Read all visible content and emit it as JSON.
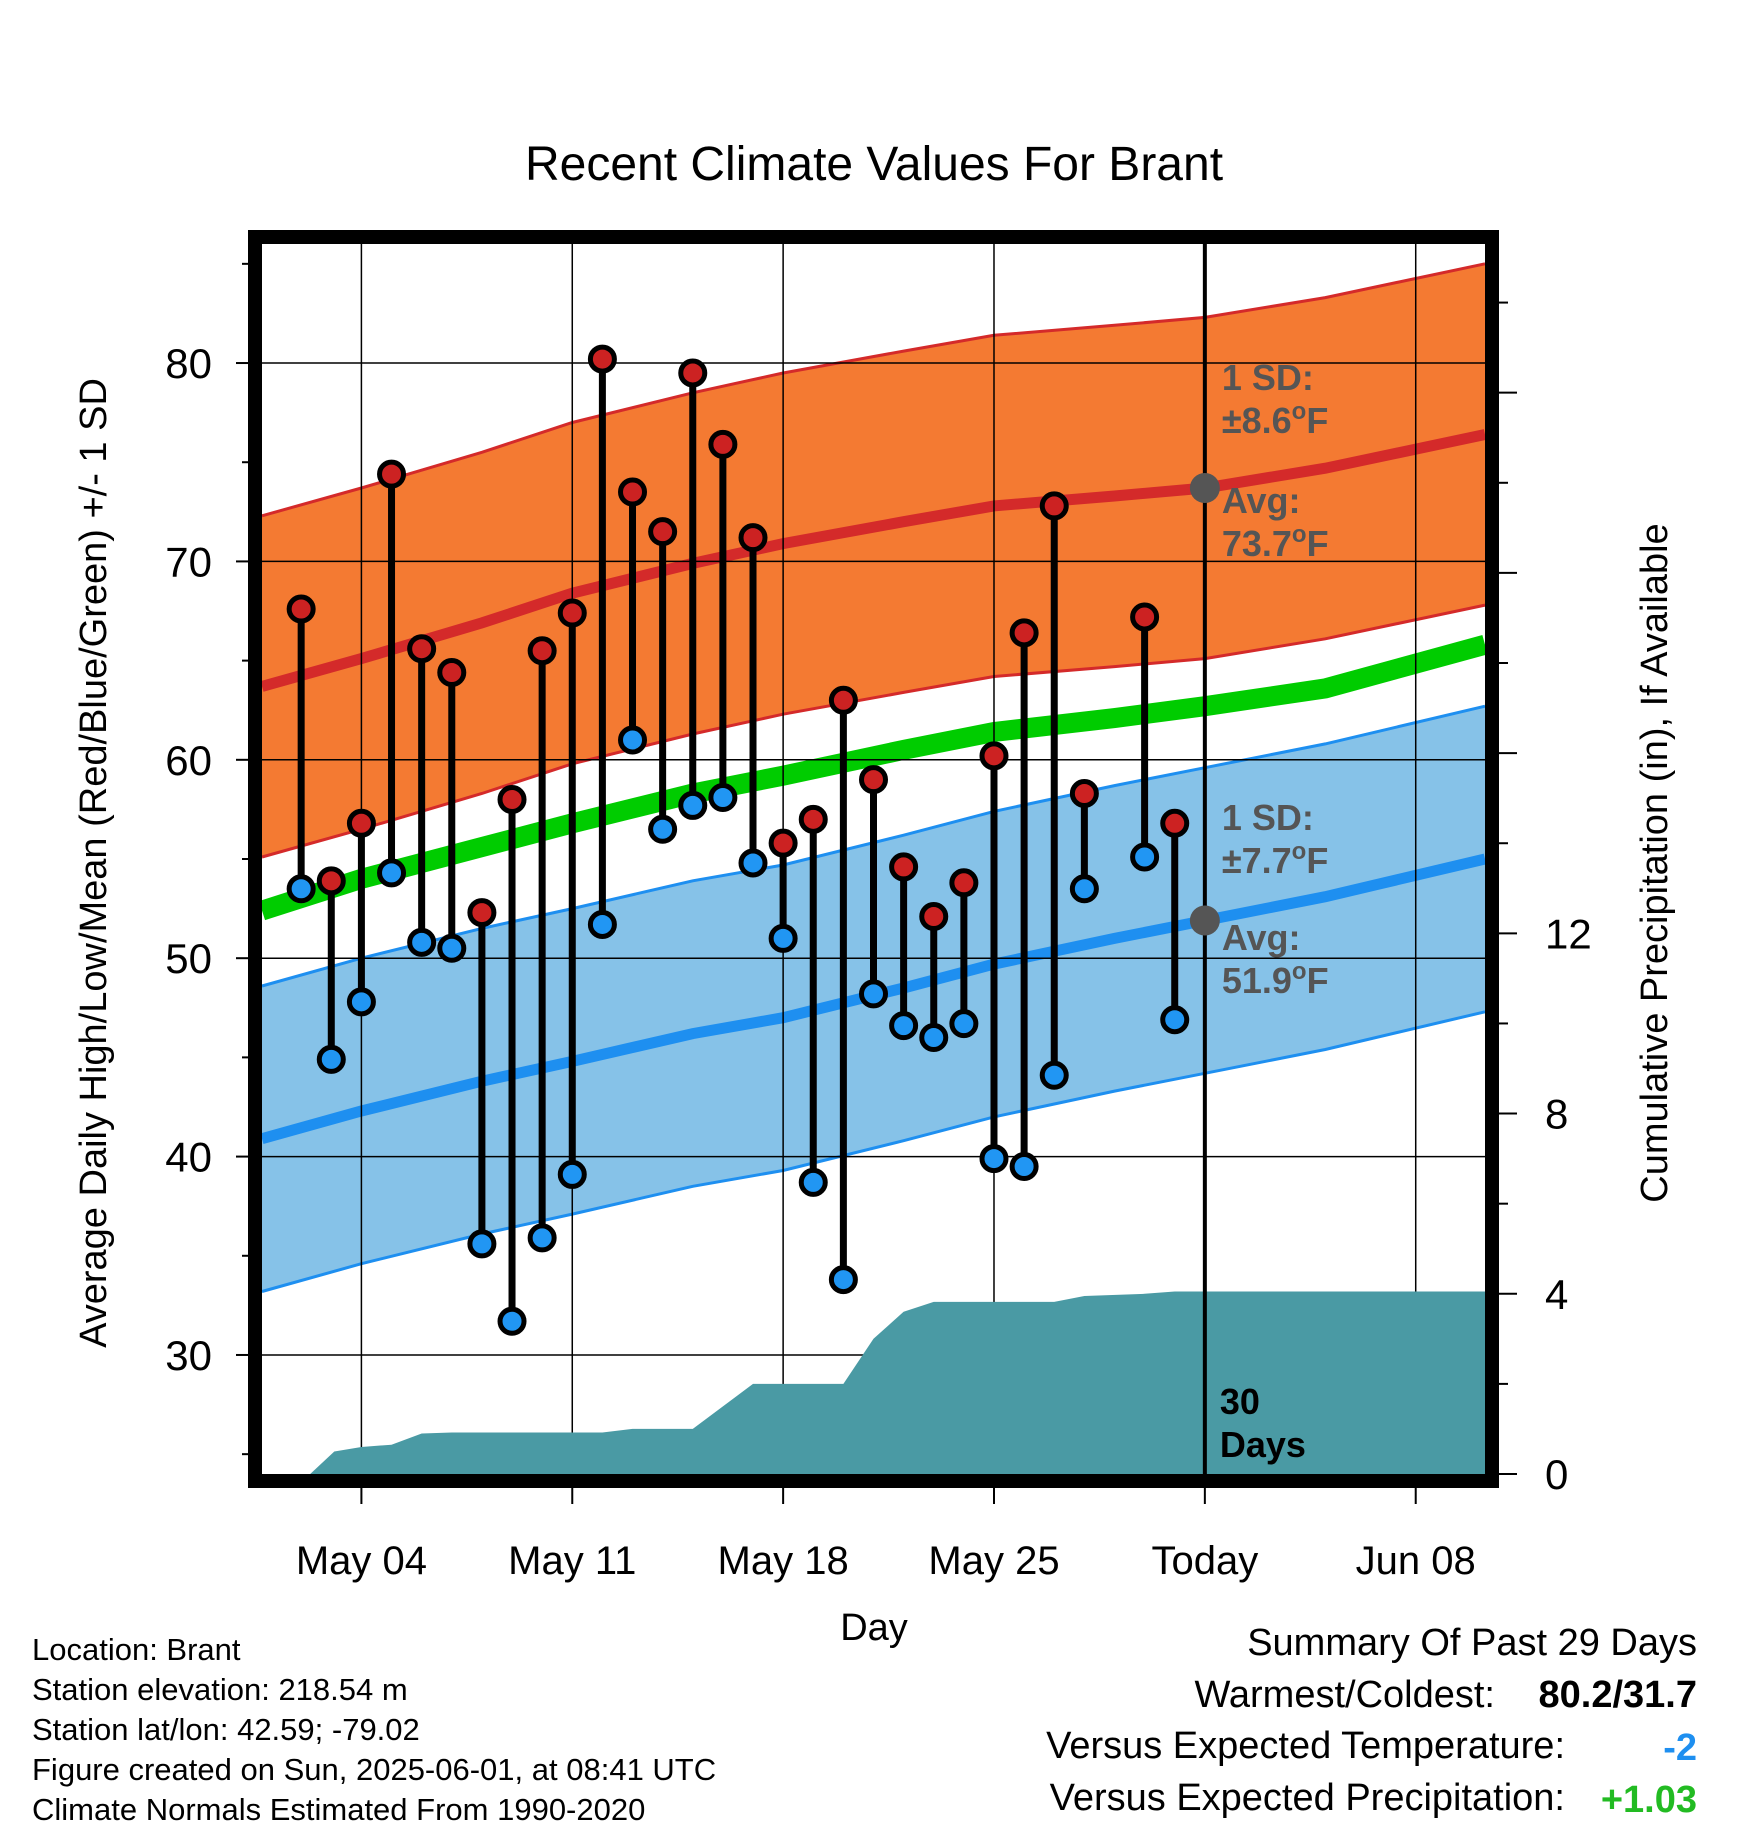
{
  "chart_data": {
    "type": "line",
    "title": "Recent Climate Values For Brant",
    "xlabel": "Day",
    "ylabel_left": "Average Daily High/Low/Mean (Red/Blue/Green) +/- 1 SD",
    "ylabel_right": "Cumulative Precipitation (in), If Available",
    "ylim_left": [
      24,
      86
    ],
    "ylim_right": [
      0,
      27.3
    ],
    "yticks_left": [
      30,
      40,
      50,
      60,
      70,
      80
    ],
    "yticks_right": [
      0,
      4,
      8,
      12
    ],
    "x_ticks": [
      {
        "day": 4,
        "label": "May 04"
      },
      {
        "day": 11,
        "label": "May 11"
      },
      {
        "day": 18,
        "label": "May 18"
      },
      {
        "day": 25,
        "label": "May 25"
      },
      {
        "day": 32,
        "label": "Today"
      },
      {
        "day": 39,
        "label": "Jun 08"
      }
    ],
    "xlim_days": [
      0.7,
      41.3
    ],
    "daily": [
      {
        "day": 2,
        "high": 67.6,
        "low": 53.5
      },
      {
        "day": 3,
        "high": 53.9,
        "low": 44.9
      },
      {
        "day": 4,
        "high": 56.8,
        "low": 47.8
      },
      {
        "day": 5,
        "high": 74.4,
        "low": 54.3
      },
      {
        "day": 6,
        "high": 65.6,
        "low": 50.8
      },
      {
        "day": 7,
        "high": 64.4,
        "low": 50.5
      },
      {
        "day": 8,
        "high": 52.3,
        "low": 35.6
      },
      {
        "day": 9,
        "high": 58.0,
        "low": 31.7
      },
      {
        "day": 10,
        "high": 65.5,
        "low": 35.9
      },
      {
        "day": 11,
        "high": 67.4,
        "low": 39.1
      },
      {
        "day": 12,
        "high": 80.2,
        "low": 51.7
      },
      {
        "day": 13,
        "high": 73.5,
        "low": 61.0
      },
      {
        "day": 14,
        "high": 71.5,
        "low": 56.5
      },
      {
        "day": 15,
        "high": 79.5,
        "low": 57.7
      },
      {
        "day": 16,
        "high": 75.9,
        "low": 58.1
      },
      {
        "day": 17,
        "high": 71.2,
        "low": 54.8
      },
      {
        "day": 18,
        "high": 55.8,
        "low": 51.0
      },
      {
        "day": 19,
        "high": 57.0,
        "low": 38.7
      },
      {
        "day": 20,
        "high": 63.0,
        "low": 33.8
      },
      {
        "day": 21,
        "high": 59.0,
        "low": 48.2
      },
      {
        "day": 22,
        "high": 54.6,
        "low": 46.6
      },
      {
        "day": 23,
        "high": 52.1,
        "low": 46.0
      },
      {
        "day": 24,
        "high": 53.8,
        "low": 46.7
      },
      {
        "day": 25,
        "high": 60.2,
        "low": 39.9
      },
      {
        "day": 26,
        "high": 66.4,
        "low": 39.5
      },
      {
        "day": 27,
        "high": 72.8,
        "low": 44.1
      },
      {
        "day": 28,
        "high": 58.3,
        "low": 53.5
      },
      {
        "day": 30,
        "high": 67.2,
        "low": 55.1
      },
      {
        "day": 31,
        "high": 56.8,
        "low": 46.9
      }
    ],
    "normals": {
      "days": [
        0.7,
        4,
        8,
        11,
        15,
        18,
        22,
        25,
        29,
        32,
        36,
        41.3
      ],
      "avg_high": [
        63.7,
        65.1,
        66.9,
        68.4,
        69.9,
        70.9,
        72.0,
        72.8,
        73.3,
        73.7,
        74.7,
        76.4
      ],
      "sd_high": 8.6,
      "avg_low": [
        40.9,
        42.3,
        43.8,
        44.8,
        46.2,
        47.0,
        48.5,
        49.7,
        51.0,
        51.9,
        53.1,
        55.0
      ],
      "sd_low": 7.7,
      "avg_mean": [
        52.4,
        54.0,
        55.6,
        56.8,
        58.3,
        59.2,
        60.5,
        61.4,
        62.1,
        62.7,
        63.6,
        65.8
      ]
    },
    "precip_cumulative": [
      {
        "day": 1.5,
        "value": 0.0
      },
      {
        "day": 2.3,
        "value": 0.0
      },
      {
        "day": 3.1,
        "value": 0.5
      },
      {
        "day": 4,
        "value": 0.6
      },
      {
        "day": 5,
        "value": 0.65
      },
      {
        "day": 6,
        "value": 0.9
      },
      {
        "day": 7,
        "value": 0.92
      },
      {
        "day": 8,
        "value": 0.92
      },
      {
        "day": 12,
        "value": 0.92
      },
      {
        "day": 13,
        "value": 1.0
      },
      {
        "day": 15,
        "value": 1.0
      },
      {
        "day": 16,
        "value": 1.5
      },
      {
        "day": 17,
        "value": 2.0
      },
      {
        "day": 20,
        "value": 2.0
      },
      {
        "day": 21,
        "value": 3.0
      },
      {
        "day": 22,
        "value": 3.6
      },
      {
        "day": 23,
        "value": 3.82
      },
      {
        "day": 27,
        "value": 3.82
      },
      {
        "day": 28,
        "value": 3.95
      },
      {
        "day": 30,
        "value": 4.0
      },
      {
        "day": 31,
        "value": 4.05
      },
      {
        "day": 41.3,
        "value": 4.05
      }
    ],
    "annotations": {
      "high_sd_label": "1 SD:",
      "high_sd_value": "±8.6",
      "high_avg_label": "Avg:",
      "high_avg_value": "73.7",
      "low_sd_label": "1 SD:",
      "low_sd_value": "±7.7",
      "low_avg_label": "Avg:",
      "low_avg_value": "51.9",
      "deg_o": "o",
      "deg_unit": "F",
      "days_line1": "30",
      "days_line2": "Days"
    },
    "today_day": 32,
    "today_avg_high": 73.7,
    "today_avg_low": 51.9,
    "colors": {
      "high_band": "#f47a32",
      "high_line": "#d42a2a",
      "low_band": "#86c2e8",
      "low_line": "#1e8ff0",
      "mean_line": "#00cc00",
      "precip": "#4a9aa4",
      "high_dot": "#cc2222",
      "low_dot": "#2196f3",
      "annotation": "#555555"
    }
  },
  "info": {
    "location": "Location: Brant",
    "elevation": "Station elevation: 218.54 m",
    "latlon": "Station lat/lon: 42.59; -79.02",
    "created": "Figure created on Sun, 2025-06-01, at 08:41 UTC",
    "normals": "Climate Normals Estimated From 1990-2020"
  },
  "summary": {
    "heading": "Summary Of Past 29 Days",
    "warmest_label": "Warmest/Coldest:",
    "warmest_value": "80.2/31.7",
    "temp_label": "Versus Expected Temperature:",
    "temp_value": "-2",
    "temp_color": "#1e8ff0",
    "precip_label": "Versus Expected Precipitation:",
    "precip_value": "+1.03",
    "precip_color": "#22bb22"
  }
}
